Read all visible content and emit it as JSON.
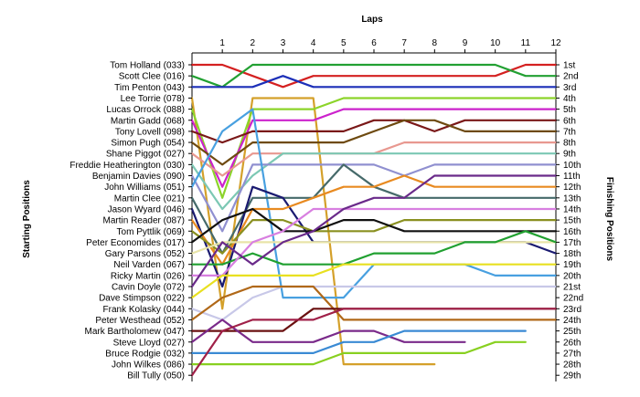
{
  "chart_data": {
    "type": "line",
    "title": "Laps",
    "ylabel_left": "Starting Positions",
    "ylabel_right": "Finishing Positions",
    "laps": [
      1,
      2,
      3,
      4,
      5,
      6,
      7,
      8,
      9,
      10,
      11,
      12
    ],
    "finishing_labels": [
      "1st",
      "2nd",
      "3rd",
      "4th",
      "5th",
      "6th",
      "7th",
      "8th",
      "9th",
      "10th",
      "11th",
      "12th",
      "13th",
      "14th",
      "15th",
      "16th",
      "17th",
      "18th",
      "19th",
      "20th",
      "21st",
      "22nd",
      "23rd",
      "24th",
      "25th",
      "26th",
      "27th",
      "28th",
      "29th"
    ],
    "series": [
      {
        "name": "Tom Holland (033)",
        "color": "#d42020",
        "positions": [
          1,
          1,
          2,
          3,
          2,
          2,
          2,
          2,
          2,
          2,
          2,
          1,
          1
        ]
      },
      {
        "name": "Scott Clee (016)",
        "color": "#22a032",
        "positions": [
          2,
          3,
          1,
          1,
          1,
          1,
          1,
          1,
          1,
          1,
          1,
          2,
          2
        ]
      },
      {
        "name": "Tim Penton (043)",
        "color": "#1c2fb8",
        "positions": [
          3,
          3,
          3,
          2,
          3,
          3,
          3,
          3,
          3,
          3,
          3,
          3,
          3
        ]
      },
      {
        "name": "Lee Torrie (078)",
        "color": "#d4a02a",
        "positions": [
          4,
          23,
          4,
          4,
          4,
          28,
          28,
          28,
          28,
          null,
          null,
          null,
          null
        ]
      },
      {
        "name": "Lucas Orrock (088)",
        "color": "#8cd42a",
        "positions": [
          5,
          13,
          5,
          5,
          5,
          4,
          4,
          4,
          4,
          4,
          4,
          4,
          4
        ]
      },
      {
        "name": "Martin Gadd (068)",
        "color": "#cc22cc",
        "positions": [
          6,
          12,
          6,
          6,
          6,
          5,
          5,
          5,
          5,
          5,
          5,
          5,
          5
        ]
      },
      {
        "name": "Tony Lovell (098)",
        "color": "#7a1818",
        "positions": [
          7,
          8,
          7,
          7,
          7,
          7,
          6,
          6,
          7,
          6,
          6,
          6,
          6
        ]
      },
      {
        "name": "Simon Pugh (054)",
        "color": "#6e4a10",
        "positions": [
          8,
          10,
          8,
          8,
          8,
          8,
          7,
          6,
          6,
          7,
          7,
          7,
          7
        ]
      },
      {
        "name": "Shane Piggot (027)",
        "color": "#e89890",
        "positions": [
          9,
          11,
          9,
          9,
          9,
          9,
          9,
          8,
          8,
          8,
          8,
          8,
          8
        ]
      },
      {
        "name": "Freddie Heatherington (030)",
        "color": "#7cc8b4",
        "positions": [
          10,
          14,
          11,
          9,
          9,
          9,
          9,
          9,
          9,
          9,
          9,
          9,
          9
        ]
      },
      {
        "name": "Benjamin Davies (090)",
        "color": "#9090d0",
        "positions": [
          11,
          16,
          10,
          10,
          10,
          10,
          10,
          11,
          10,
          10,
          10,
          10,
          10
        ]
      },
      {
        "name": "John Williams (051)",
        "color": "#48a0e0",
        "positions": [
          12,
          7,
          5,
          22,
          22,
          22,
          19,
          19,
          19,
          19,
          20,
          20,
          20
        ]
      },
      {
        "name": "Martin Clee (021)",
        "color": "#466a6a",
        "positions": [
          13,
          18,
          13,
          13,
          13,
          10,
          12,
          13,
          13,
          13,
          13,
          13,
          13
        ]
      },
      {
        "name": "Jason Wyard (046)",
        "color": "#1a1a70",
        "positions": [
          14,
          21,
          12,
          13,
          17,
          17,
          17,
          17,
          17,
          17,
          17,
          17,
          18
        ]
      },
      {
        "name": "Martin Reader (087)",
        "color": "#e88a20",
        "positions": [
          15,
          19,
          14,
          14,
          13,
          12,
          12,
          11,
          12,
          12,
          12,
          12,
          12
        ]
      },
      {
        "name": "Tom Pyttlik (069)",
        "color": "#8a9020",
        "positions": [
          16,
          18,
          15,
          15,
          16,
          16,
          16,
          15,
          15,
          15,
          15,
          15,
          15
        ]
      },
      {
        "name": "Peter Economides (017)",
        "color": "#101010",
        "positions": [
          17,
          15,
          14,
          16,
          16,
          15,
          15,
          16,
          16,
          16,
          16,
          16,
          16
        ]
      },
      {
        "name": "Gary Parsons (052)",
        "color": "#e8e4a8",
        "positions": [
          18,
          17,
          17,
          17,
          17,
          17,
          17,
          17,
          17,
          17,
          17,
          17,
          17
        ]
      },
      {
        "name": "Neil Varden (067)",
        "color": "#20a030",
        "positions": [
          19,
          19,
          18,
          19,
          19,
          19,
          18,
          18,
          18,
          17,
          17,
          16,
          17
        ]
      },
      {
        "name": "Ricky Martin (026)",
        "color": "#d87fe0",
        "positions": [
          20,
          20,
          17,
          16,
          14,
          14,
          14,
          14,
          14,
          14,
          14,
          14,
          14
        ]
      },
      {
        "name": "Cavin Doyle (072)",
        "color": "#6a2a8a",
        "positions": [
          21,
          17,
          19,
          17,
          16,
          14,
          13,
          13,
          11,
          11,
          11,
          11,
          11
        ]
      },
      {
        "name": "Dave Stimpson (022)",
        "color": "#e8e020",
        "positions": [
          22,
          20,
          20,
          20,
          20,
          19,
          19,
          19,
          19,
          19,
          19,
          19,
          19
        ]
      },
      {
        "name": "Frank Kolasky (044)",
        "color": "#c8c8e8",
        "positions": [
          23,
          24,
          22,
          21,
          21,
          21,
          21,
          21,
          21,
          21,
          21,
          21,
          21
        ]
      },
      {
        "name": "Peter Westhead (052)",
        "color": "#b06818",
        "positions": [
          24,
          22,
          21,
          21,
          21,
          24,
          24,
          24,
          24,
          24,
          24,
          24,
          24
        ]
      },
      {
        "name": "Mark Bartholomew (047)",
        "color": "#6a1010",
        "positions": [
          25,
          25,
          25,
          25,
          23,
          23,
          23,
          23,
          23,
          23,
          23,
          23,
          23
        ]
      },
      {
        "name": "Steve Lloyd (027)",
        "color": "#7a2a8a",
        "positions": [
          26,
          24,
          26,
          26,
          26,
          25,
          25,
          26,
          26,
          26,
          null,
          null,
          null
        ]
      },
      {
        "name": "Bruce Rodgie (032)",
        "color": "#3a8ad4",
        "positions": [
          27,
          27,
          27,
          27,
          27,
          26,
          26,
          25,
          25,
          25,
          25,
          25,
          null
        ]
      },
      {
        "name": "John Wilkes (086)",
        "color": "#88d020",
        "positions": [
          28,
          28,
          28,
          28,
          28,
          27,
          27,
          27,
          27,
          27,
          26,
          26,
          null
        ]
      },
      {
        "name": "Bill Tully (050)",
        "color": "#a02048",
        "positions": [
          29,
          25,
          24,
          24,
          24,
          23,
          23,
          23,
          23,
          23,
          23,
          23,
          23
        ]
      }
    ]
  }
}
